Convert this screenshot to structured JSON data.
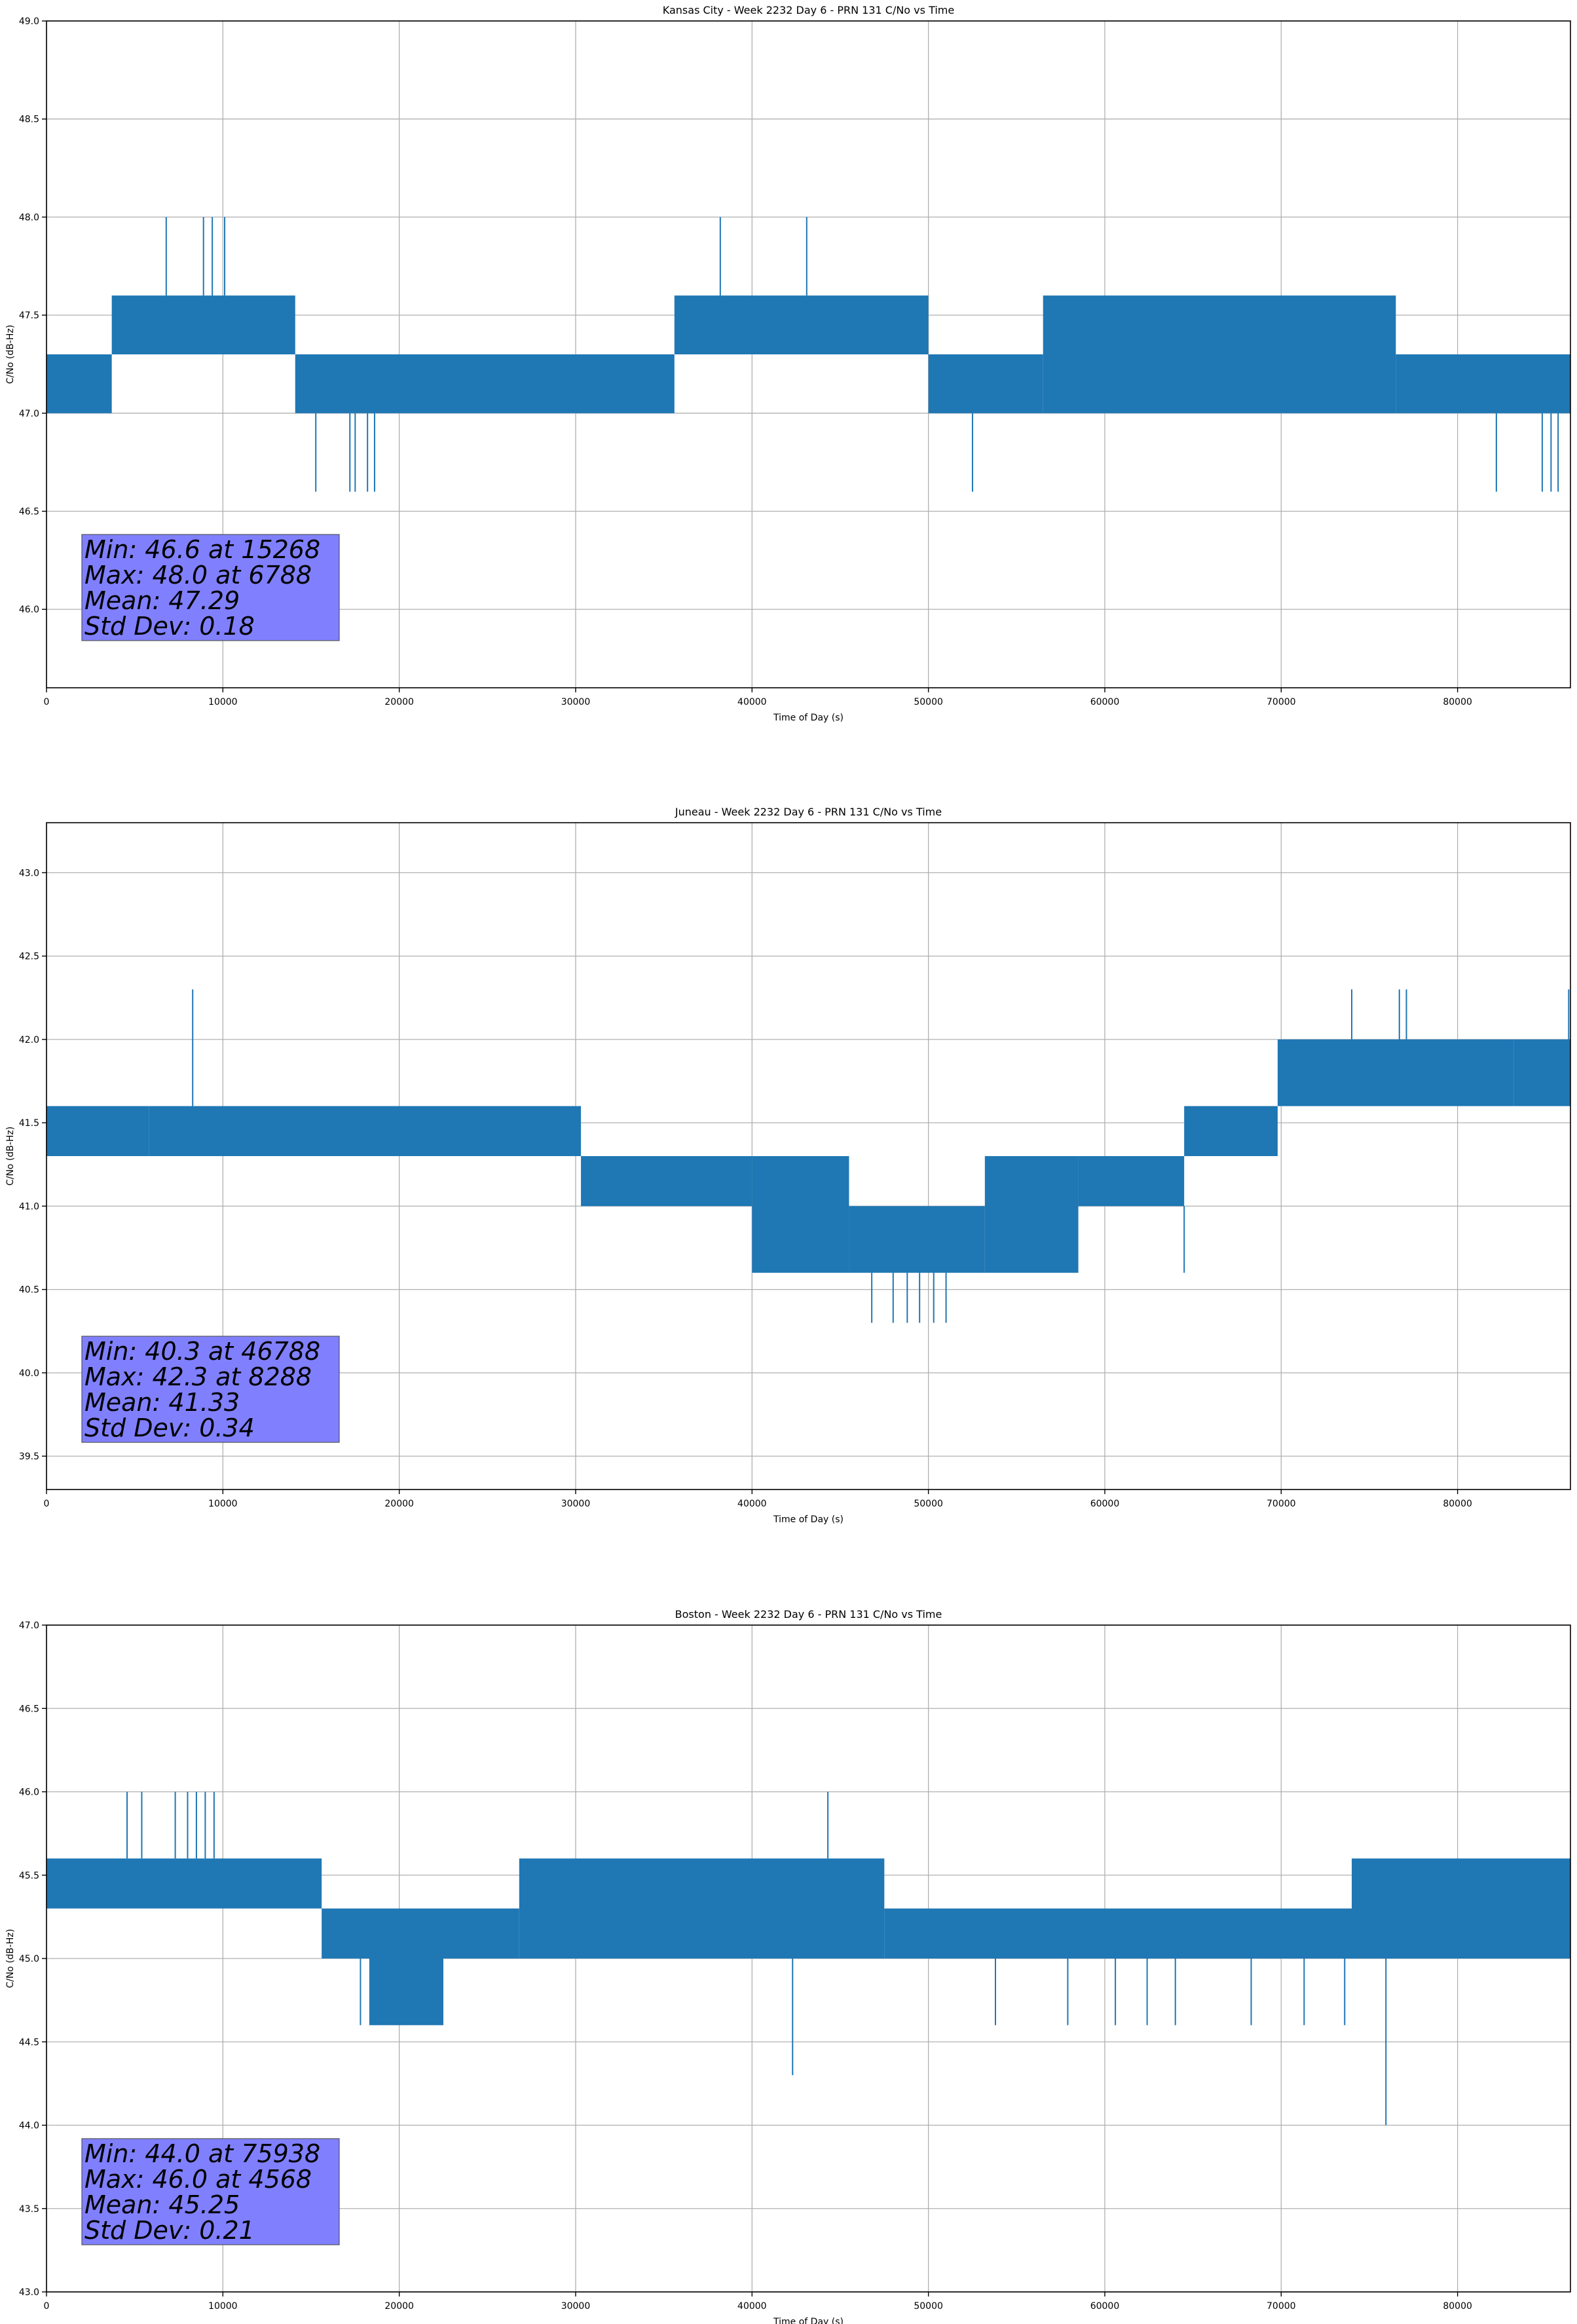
{
  "chart_data": [
    {
      "type": "line",
      "title": "Kansas City - Week 2232 Day 6 - PRN 131 C/No vs Time",
      "xlabel": "Time of Day (s)",
      "ylabel": "C/No (dB-Hz)",
      "xlim": [
        0,
        86400
      ],
      "ylim": [
        45.6,
        49.0
      ],
      "xticks": [
        0,
        10000,
        20000,
        30000,
        40000,
        50000,
        60000,
        70000,
        80000
      ],
      "yticks": [
        46.0,
        46.5,
        47.0,
        47.5,
        48.0,
        48.5,
        49.0
      ],
      "ytick_labels": [
        "46.0",
        "46.5",
        "47.0",
        "47.5",
        "48.0",
        "48.5",
        "49.0"
      ],
      "grid": true,
      "color": "#1f77b4",
      "segments": [
        {
          "x": [
            0,
            3700
          ],
          "lo": 47.0,
          "hi": 47.3
        },
        {
          "x": [
            3700,
            14100
          ],
          "lo": 47.3,
          "hi": 47.6
        },
        {
          "x": [
            14100,
            35600
          ],
          "lo": 47.0,
          "hi": 47.3
        },
        {
          "x": [
            35600,
            50000
          ],
          "lo": 47.3,
          "hi": 47.6
        },
        {
          "x": [
            50000,
            56500
          ],
          "lo": 47.0,
          "hi": 47.3
        },
        {
          "x": [
            56500,
            76500
          ],
          "lo": 47.0,
          "hi": 47.6
        },
        {
          "x": [
            76500,
            86400
          ],
          "lo": 47.0,
          "hi": 47.3
        }
      ],
      "spikes": [
        {
          "x": 6788,
          "y": 48.0
        },
        {
          "x": 8900,
          "y": 48.0
        },
        {
          "x": 9400,
          "y": 48.0
        },
        {
          "x": 10100,
          "y": 48.0
        },
        {
          "x": 38200,
          "y": 48.0
        },
        {
          "x": 43100,
          "y": 48.0
        },
        {
          "x": 15268,
          "y": 46.6
        },
        {
          "x": 17200,
          "y": 46.6
        },
        {
          "x": 17500,
          "y": 46.6
        },
        {
          "x": 18200,
          "y": 46.6
        },
        {
          "x": 18600,
          "y": 46.6
        },
        {
          "x": 52500,
          "y": 46.6
        },
        {
          "x": 82200,
          "y": 46.6
        },
        {
          "x": 84800,
          "y": 46.6
        },
        {
          "x": 85300,
          "y": 46.6
        },
        {
          "x": 85700,
          "y": 46.6
        }
      ],
      "stats": {
        "min": "Min: 46.6 at 15268",
        "max": "Max: 48.0 at 6788",
        "mean": "Mean: 47.29",
        "std": "Std Dev: 0.18"
      }
    },
    {
      "type": "line",
      "title": "Juneau - Week 2232 Day 6 - PRN 131 C/No vs Time",
      "xlabel": "Time of Day (s)",
      "ylabel": "C/No (dB-Hz)",
      "xlim": [
        0,
        86400
      ],
      "ylim": [
        39.3,
        43.3
      ],
      "xticks": [
        0,
        10000,
        20000,
        30000,
        40000,
        50000,
        60000,
        70000,
        80000
      ],
      "yticks": [
        39.5,
        40.0,
        40.5,
        41.0,
        41.5,
        42.0,
        42.5,
        43.0
      ],
      "ytick_labels": [
        "39.5",
        "40.0",
        "40.5",
        "41.0",
        "41.5",
        "42.0",
        "42.5",
        "43.0"
      ],
      "grid": true,
      "color": "#1f77b4",
      "segments": [
        {
          "x": [
            0,
            5800
          ],
          "lo": 41.3,
          "hi": 41.6
        },
        {
          "x": [
            5800,
            30300
          ],
          "lo": 41.3,
          "hi": 41.6
        },
        {
          "x": [
            30300,
            40000
          ],
          "lo": 41.0,
          "hi": 41.3
        },
        {
          "x": [
            40000,
            45500
          ],
          "lo": 40.6,
          "hi": 41.3
        },
        {
          "x": [
            45500,
            53200
          ],
          "lo": 40.6,
          "hi": 41.0
        },
        {
          "x": [
            53200,
            58500
          ],
          "lo": 40.6,
          "hi": 41.3
        },
        {
          "x": [
            58500,
            64500
          ],
          "lo": 41.0,
          "hi": 41.3
        },
        {
          "x": [
            64500,
            69800
          ],
          "lo": 41.3,
          "hi": 41.6
        },
        {
          "x": [
            69800,
            83200
          ],
          "lo": 41.6,
          "hi": 42.0
        },
        {
          "x": [
            83200,
            86400
          ],
          "lo": 41.6,
          "hi": 42.0
        }
      ],
      "spikes": [
        {
          "x": 8288,
          "y": 42.3
        },
        {
          "x": 74000,
          "y": 42.3
        },
        {
          "x": 76700,
          "y": 42.3
        },
        {
          "x": 77100,
          "y": 42.3
        },
        {
          "x": 86300,
          "y": 42.3
        },
        {
          "x": 46788,
          "y": 40.3
        },
        {
          "x": 48000,
          "y": 40.3
        },
        {
          "x": 48800,
          "y": 40.3
        },
        {
          "x": 49500,
          "y": 40.3
        },
        {
          "x": 50300,
          "y": 40.3
        },
        {
          "x": 51000,
          "y": 40.3
        },
        {
          "x": 64500,
          "y": 40.6
        }
      ],
      "stats": {
        "min": "Min: 40.3 at 46788",
        "max": "Max: 42.3 at 8288",
        "mean": "Mean: 41.33",
        "std": "Std Dev: 0.34"
      }
    },
    {
      "type": "line",
      "title": "Boston - Week 2232 Day 6 - PRN 131 C/No vs Time",
      "xlabel": "Time of Day (s)",
      "ylabel": "C/No (dB-Hz)",
      "xlim": [
        0,
        86400
      ],
      "ylim": [
        43.0,
        47.0
      ],
      "xticks": [
        0,
        10000,
        20000,
        30000,
        40000,
        50000,
        60000,
        70000,
        80000
      ],
      "yticks": [
        43.0,
        43.5,
        44.0,
        44.5,
        45.0,
        45.5,
        46.0,
        46.5,
        47.0
      ],
      "ytick_labels": [
        "43.0",
        "43.5",
        "44.0",
        "44.5",
        "45.0",
        "45.5",
        "46.0",
        "46.5",
        "47.0"
      ],
      "grid": true,
      "color": "#1f77b4",
      "segments": [
        {
          "x": [
            0,
            15600
          ],
          "lo": 45.3,
          "hi": 45.6
        },
        {
          "x": [
            15600,
            26800
          ],
          "lo": 45.0,
          "hi": 45.3
        },
        {
          "x": [
            18300,
            22500
          ],
          "lo": 44.6,
          "hi": 45.0
        },
        {
          "x": [
            26800,
            47500
          ],
          "lo": 45.0,
          "hi": 45.6
        },
        {
          "x": [
            47500,
            86400
          ],
          "lo": 45.0,
          "hi": 45.3
        },
        {
          "x": [
            74000,
            86400
          ],
          "lo": 45.0,
          "hi": 45.6
        }
      ],
      "spikes": [
        {
          "x": 4568,
          "y": 46.0
        },
        {
          "x": 5400,
          "y": 46.0
        },
        {
          "x": 7300,
          "y": 46.0
        },
        {
          "x": 8000,
          "y": 46.0
        },
        {
          "x": 8500,
          "y": 46.0
        },
        {
          "x": 9000,
          "y": 46.0
        },
        {
          "x": 9500,
          "y": 46.0
        },
        {
          "x": 44300,
          "y": 46.0
        },
        {
          "x": 42300,
          "y": 44.3
        },
        {
          "x": 75938,
          "y": 44.0
        },
        {
          "x": 17800,
          "y": 44.6
        },
        {
          "x": 53800,
          "y": 44.6
        },
        {
          "x": 57900,
          "y": 44.6
        },
        {
          "x": 60600,
          "y": 44.6
        },
        {
          "x": 62400,
          "y": 44.6
        },
        {
          "x": 64000,
          "y": 44.6
        },
        {
          "x": 68300,
          "y": 44.6
        },
        {
          "x": 71300,
          "y": 44.6
        },
        {
          "x": 73600,
          "y": 44.6
        }
      ],
      "stats": {
        "min": "Min: 44.0 at 75938",
        "max": "Max: 46.0 at 4568",
        "mean": "Mean: 45.25",
        "std": "Std Dev: 0.21"
      }
    }
  ]
}
